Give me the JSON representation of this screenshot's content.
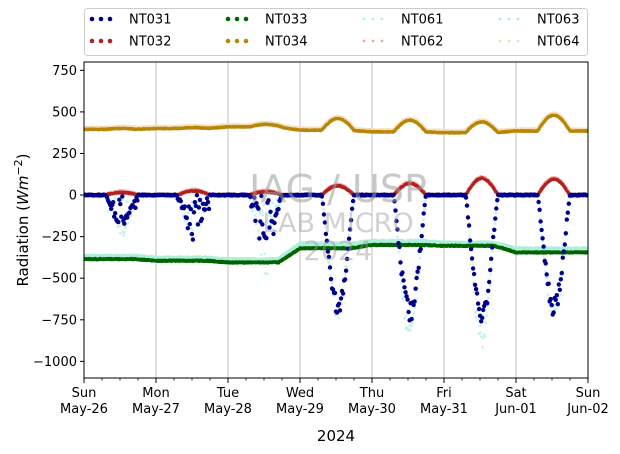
{
  "chart_data": {
    "type": "scatter",
    "title": "",
    "xlabel": "2024",
    "ylabel_main": "Radiation (",
    "ylabel_unit": "Wm",
    "ylabel_exp": "−2",
    "ylabel_close": ")",
    "ylim": [
      -1100,
      800
    ],
    "xlim": [
      0,
      7
    ],
    "y_ticks": [
      -1000,
      -750,
      -500,
      -250,
      0,
      250,
      500,
      750
    ],
    "y_tick_labels": [
      "−1000",
      "−750",
      "−500",
      "−250",
      "0",
      "250",
      "500",
      "750"
    ],
    "x_ticks": [
      0,
      1,
      2,
      3,
      4,
      5,
      6,
      7
    ],
    "x_tick_labels": [
      [
        "Sun",
        "May-26"
      ],
      [
        "Mon",
        "May-27"
      ],
      [
        "Tue",
        "May-28"
      ],
      [
        "Wed",
        "May-29"
      ],
      [
        "Thu",
        "May-30"
      ],
      [
        "Fri",
        "May-31"
      ],
      [
        "Sat",
        "Jun-01"
      ],
      [
        "Sun",
        "Jun-02"
      ]
    ],
    "grid": "vertical",
    "legend_position": "top, outside",
    "watermark": [
      "IAG / USP",
      "LAB MICRO",
      "2024"
    ],
    "day_midpoints_x": [
      0.5,
      1.5,
      2.5,
      3.5,
      4.5,
      5.5,
      6.5
    ],
    "series": [
      {
        "name": "NT031",
        "color": "#00008b",
        "style": "dot",
        "baseline": 0,
        "daily_min": [
          -200,
          -270,
          -340,
          -720,
          -760,
          -780,
          -730
        ]
      },
      {
        "name": "NT032",
        "color": "#b22222",
        "style": "dot",
        "baseline": 0,
        "daily_peak": [
          15,
          25,
          20,
          55,
          70,
          100,
          95
        ]
      },
      {
        "name": "NT033",
        "color": "#006400",
        "style": "dot",
        "daily_mean": [
          -385,
          -395,
          -405,
          -320,
          -300,
          -305,
          -345
        ]
      },
      {
        "name": "NT034",
        "color": "#b8860b",
        "style": "dot",
        "daily_mean": [
          395,
          400,
          410,
          390,
          380,
          375,
          385
        ],
        "daily_peak": [
          400,
          405,
          425,
          460,
          450,
          440,
          480
        ]
      },
      {
        "name": "NT061",
        "color": "#afeeee",
        "style": "dot-faint",
        "baseline": 0,
        "daily_min": [
          -250,
          -280,
          -480,
          -750,
          -900,
          -930,
          -760
        ]
      },
      {
        "name": "NT062",
        "color": "#f4a9a0",
        "style": "dot-faint",
        "baseline": 0,
        "daily_peak": [
          20,
          30,
          25,
          60,
          75,
          105,
          100
        ]
      },
      {
        "name": "NT063",
        "color": "#aeeed8",
        "style": "dot-faint",
        "daily_mean": [
          -375,
          -385,
          -395,
          -300,
          -285,
          -295,
          -330
        ]
      },
      {
        "name": "NT064",
        "color": "#f5deb3",
        "style": "dot-faint",
        "daily_mean": [
          400,
          405,
          415,
          395,
          385,
          380,
          390
        ],
        "daily_peak": [
          405,
          410,
          430,
          465,
          455,
          445,
          485
        ]
      }
    ]
  }
}
